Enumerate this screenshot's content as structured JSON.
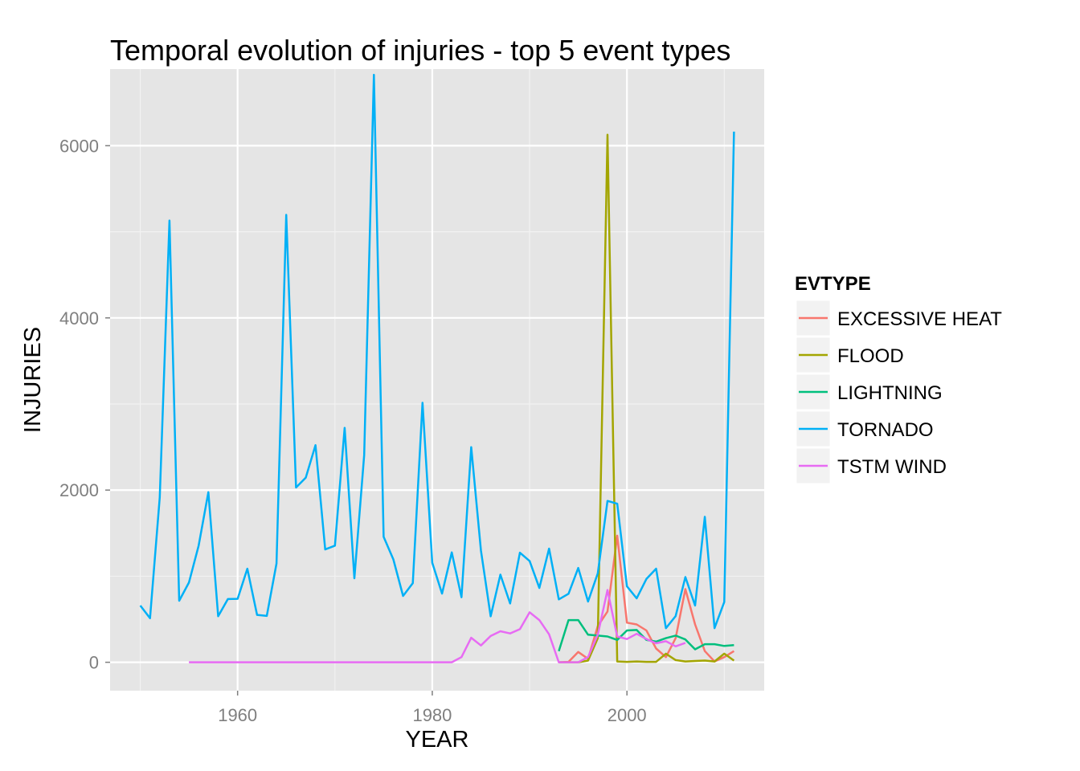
{
  "chart_data": {
    "type": "line",
    "title": "Temporal evolution of injuries - top 5 event types",
    "xlabel": "YEAR",
    "ylabel": "INJURIES",
    "xlim": [
      1946.9,
      2014.1
    ],
    "ylim": [
      -330,
      6890
    ],
    "x_ticks": [
      1960,
      1980,
      2000
    ],
    "y_ticks": [
      0,
      2000,
      4000,
      6000
    ],
    "x_tick_labels": [
      "1960",
      "1980",
      "2000"
    ],
    "y_tick_labels": [
      "0",
      "2000",
      "4000",
      "6000"
    ],
    "grid": true,
    "legend": {
      "title": "EVTYPE",
      "position": "right",
      "entries": [
        "EXCESSIVE HEAT",
        "FLOOD",
        "LIGHTNING",
        "TORNADO",
        "TSTM WIND"
      ]
    },
    "series": [
      {
        "name": "TORNADO",
        "color": "#00B0F6",
        "x": [
          1950,
          1951,
          1952,
          1953,
          1954,
          1955,
          1956,
          1957,
          1958,
          1959,
          1960,
          1961,
          1962,
          1963,
          1964,
          1965,
          1966,
          1967,
          1968,
          1969,
          1970,
          1971,
          1972,
          1973,
          1974,
          1975,
          1976,
          1977,
          1978,
          1979,
          1980,
          1981,
          1982,
          1983,
          1984,
          1985,
          1986,
          1987,
          1988,
          1989,
          1990,
          1991,
          1992,
          1993,
          1994,
          1995,
          1996,
          1997,
          1998,
          1999,
          2000,
          2001,
          2002,
          2003,
          2004,
          2005,
          2006,
          2007,
          2008,
          2009,
          2010,
          2011
        ],
        "values": [
          659,
          511,
          1915,
          5131,
          715,
          926,
          1355,
          1976,
          535,
          734,
          737,
          1087,
          551,
          538,
          1148,
          5197,
          2030,
          2144,
          2522,
          1311,
          1355,
          2723,
          976,
          2406,
          6824,
          1457,
          1195,
          771,
          919,
          3014,
          1157,
          798,
          1276,
          756,
          2499,
          1299,
          534,
          1018,
          683,
          1273,
          1176,
          863,
          1320,
          731,
          796,
          1095,
          705,
          1033,
          1874,
          1842,
          882,
          743,
          968,
          1087,
          396,
          537,
          990,
          659,
          1690,
          397,
          700,
          6163
        ]
      },
      {
        "name": "TSTM WIND",
        "color": "#E76BF3",
        "x": [
          1955,
          1956,
          1957,
          1958,
          1959,
          1960,
          1961,
          1962,
          1963,
          1964,
          1965,
          1966,
          1967,
          1968,
          1969,
          1970,
          1971,
          1972,
          1973,
          1974,
          1975,
          1976,
          1977,
          1978,
          1979,
          1980,
          1981,
          1982,
          1983,
          1984,
          1985,
          1986,
          1987,
          1988,
          1989,
          1990,
          1991,
          1992,
          1993,
          1994,
          1995,
          1996,
          1997,
          1998,
          1999,
          2000,
          2001,
          2002,
          2003,
          2004,
          2005,
          2006
        ],
        "values": [
          0,
          0,
          0,
          0,
          0,
          0,
          0,
          0,
          0,
          0,
          0,
          0,
          0,
          0,
          0,
          0,
          0,
          0,
          0,
          0,
          0,
          0,
          0,
          0,
          0,
          0,
          0,
          0,
          60,
          285,
          195,
          305,
          360,
          335,
          385,
          580,
          490,
          325,
          0,
          0,
          0,
          60,
          320,
          840,
          300,
          270,
          330,
          270,
          220,
          245,
          185,
          225
        ]
      },
      {
        "name": "EXCESSIVE HEAT",
        "color": "#F8766D",
        "x": [
          1993,
          1994,
          1995,
          1996,
          1997,
          1998,
          1999,
          2000,
          2001,
          2002,
          2003,
          2004,
          2005,
          2006,
          2007,
          2008,
          2009,
          2010,
          2011
        ],
        "values": [
          0,
          5,
          120,
          40,
          420,
          590,
          1470,
          460,
          440,
          370,
          160,
          60,
          280,
          850,
          440,
          130,
          10,
          60,
          130
        ]
      },
      {
        "name": "FLOOD",
        "color": "#A3A500",
        "x": [
          1993,
          1994,
          1995,
          1996,
          1997,
          1998,
          1999,
          2000,
          2001,
          2002,
          2003,
          2004,
          2005,
          2006,
          2007,
          2008,
          2009,
          2010,
          2011
        ],
        "values": [
          0,
          0,
          0,
          20,
          280,
          6128,
          10,
          5,
          10,
          5,
          5,
          100,
          25,
          10,
          15,
          20,
          10,
          100,
          20
        ]
      },
      {
        "name": "LIGHTNING",
        "color": "#00BF7D",
        "x": [
          1993,
          1994,
          1995,
          1996,
          1997,
          1998,
          1999,
          2000,
          2001,
          2002,
          2003,
          2004,
          2005,
          2006,
          2007,
          2008,
          2009,
          2010,
          2011
        ],
        "values": [
          130,
          490,
          490,
          320,
          310,
          300,
          260,
          370,
          375,
          260,
          240,
          280,
          310,
          265,
          150,
          210,
          210,
          190,
          200
        ]
      }
    ],
    "draw_order": [
      "EXCESSIVE HEAT",
      "FLOOD",
      "LIGHTNING",
      "TORNADO",
      "TSTM WIND"
    ]
  }
}
